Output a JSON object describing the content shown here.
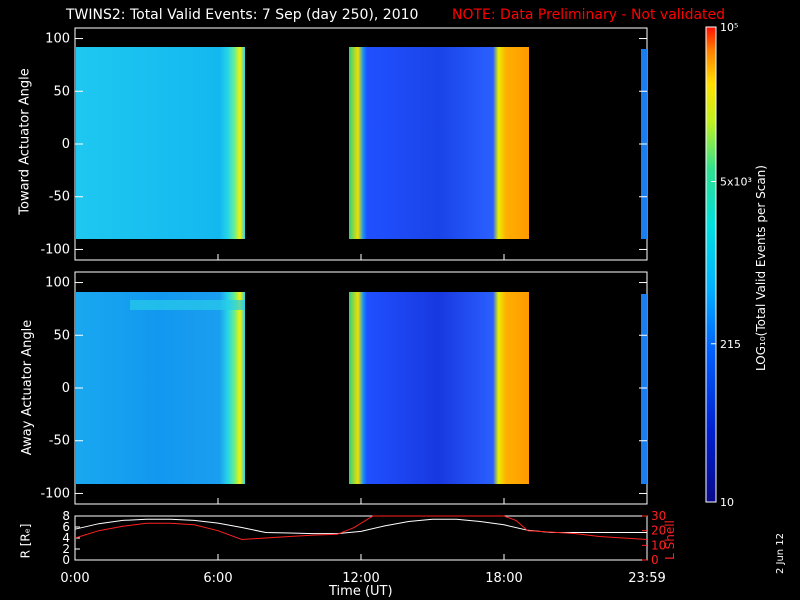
{
  "title": {
    "main": "TWINS2: Total Valid Events:  7 Sep (day 250), 2010",
    "note": "NOTE: Data Preliminary - Not validated",
    "note_color": "#ff0000"
  },
  "stamp": "2 Jun 12",
  "chart_data": [
    {
      "type": "heatmap",
      "ylabel": "Toward Actuator Angle",
      "ylim": [
        -110,
        110
      ],
      "yticks": [
        100,
        50,
        0,
        -50,
        -100
      ],
      "data_range_y": [
        -90,
        90
      ],
      "segments": [
        {
          "start": "00:00",
          "end": "07:15",
          "dominant_level": "~2.5e3 (cyan)",
          "edge_level": "~5e3-1e4 (yellow/orange)"
        },
        {
          "start": "11:45",
          "end": "19:00",
          "dominant_level": "~150 (blue)",
          "edge_level": "~1e4-2e4 (orange)"
        }
      ],
      "grid": false
    },
    {
      "type": "heatmap",
      "ylabel": "Away Actuator Angle",
      "ylim": [
        -110,
        110
      ],
      "yticks": [
        100,
        50,
        0,
        -50,
        -100
      ],
      "data_range_y": [
        -90,
        90
      ],
      "segments": [
        {
          "start": "00:00",
          "end": "07:15",
          "dominant_level": "~1.5e3 (cyan/blue)",
          "edge_level": "~5e3-1e4 (yellow/orange)"
        },
        {
          "start": "11:45",
          "end": "19:00",
          "dominant_level": "~150 (blue)",
          "edge_level": "~1e4-2e4 (orange)"
        }
      ],
      "grid": false
    },
    {
      "type": "line",
      "xlabel": "Time (UT)",
      "xticks": [
        "0:00",
        "6:00",
        "12:00",
        "18:00",
        "23:59"
      ],
      "xlim_hours": [
        0,
        24
      ],
      "left_axis": {
        "label": "R [Rₑ]",
        "ylim": [
          0,
          8
        ],
        "yticks": [
          0,
          2,
          4,
          6,
          8
        ],
        "color": "#ffffff"
      },
      "right_axis": {
        "label": "L Shell",
        "ylim": [
          0,
          30
        ],
        "yticks": [
          0,
          10,
          20,
          30
        ],
        "color": "#ff2020"
      },
      "series": [
        {
          "axis": "left",
          "color": "#ffffff",
          "x": [
            0,
            1,
            2,
            3,
            4,
            5,
            6,
            7,
            8,
            9,
            10,
            11,
            12,
            13,
            14,
            15,
            16,
            17,
            18,
            19,
            20,
            21,
            22,
            23,
            24
          ],
          "y": [
            5.6,
            6.6,
            7.2,
            7.4,
            7.4,
            7.2,
            6.7,
            5.9,
            5.0,
            4.9,
            4.8,
            4.8,
            5.2,
            6.2,
            7.0,
            7.4,
            7.4,
            7.0,
            6.4,
            5.4,
            5.0,
            5.0,
            5.0,
            5.0,
            5.0
          ]
        },
        {
          "axis": "right",
          "color": "#ff2020",
          "x": [
            0,
            1,
            2,
            3,
            4,
            5,
            6,
            7,
            8,
            9,
            10,
            11,
            11.7,
            12.5,
            18,
            18.5,
            19,
            20,
            21,
            22,
            23,
            24
          ],
          "y": [
            15,
            20,
            23,
            25,
            25,
            24,
            20,
            14,
            15,
            16,
            17,
            17.5,
            22,
            30,
            30,
            27,
            20,
            19,
            18,
            16,
            15,
            14
          ]
        }
      ]
    }
  ],
  "colorbar": {
    "label": "LOG₁₀(Total Valid Events per Scan)",
    "ticks": [
      "10⁵",
      "5x10³",
      "215",
      "10"
    ],
    "scale": "log",
    "range": [
      10,
      100000
    ]
  }
}
